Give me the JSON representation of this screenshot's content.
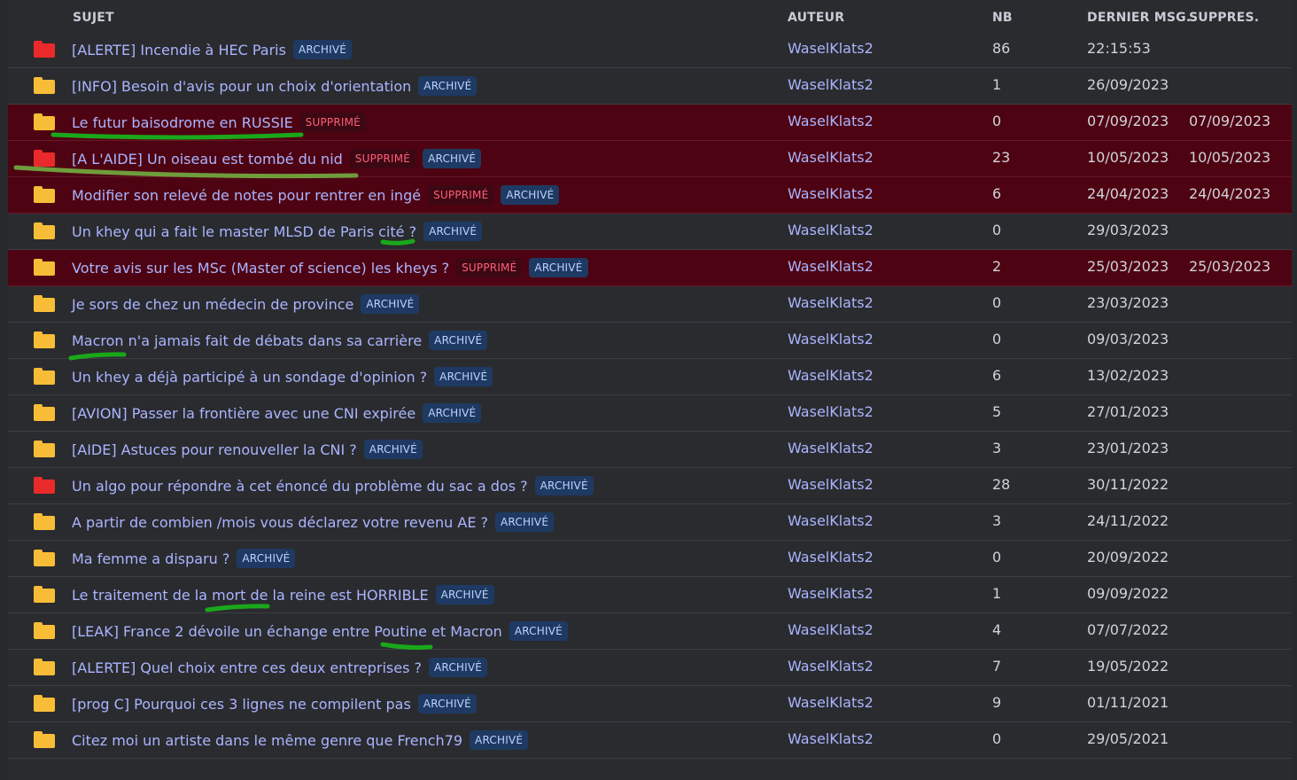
{
  "headers": {
    "subject": "SUJET",
    "author": "AUTEUR",
    "count": "NB",
    "last_message": "DERNIER MSG.",
    "deleted_at": "SUPPRES."
  },
  "colors": {
    "folder_normal": "#f8bd37",
    "folder_hot": "#ea2a2a",
    "deleted_row_bg": "#4e0312",
    "link": "#aab5ff",
    "highlight_marker": "#1aa81a"
  },
  "icons": {
    "topic": "folder-icon"
  },
  "topics": [
    {
      "title": "[ALERTE] Incendie à HEC Paris",
      "hot": true,
      "deleted_label": "",
      "archived_label": "ARCHIVÉ",
      "author": "WaselKlats2",
      "count": "86",
      "last": "22:15:53",
      "deleted_at": ""
    },
    {
      "title": "[INFO] Besoin d'avis pour un choix d'orientation",
      "hot": false,
      "deleted_label": "",
      "archived_label": "ARCHIVÉ",
      "author": "WaselKlats2",
      "count": "1",
      "last": "26/09/2023",
      "deleted_at": ""
    },
    {
      "title": "Le futur baisodrome en RUSSIE",
      "hot": false,
      "deleted_label": "SUPPRIMÉ",
      "archived_label": "",
      "author": "WaselKlats2",
      "count": "0",
      "last": "07/09/2023",
      "deleted_at": "07/09/2023"
    },
    {
      "title": "[A L'AIDE] Un oiseau est tombé du nid",
      "hot": true,
      "deleted_label": "SUPPRIMÉ",
      "archived_label": "ARCHIVÉ",
      "author": "WaselKlats2",
      "count": "23",
      "last": "10/05/2023",
      "deleted_at": "10/05/2023"
    },
    {
      "title": "Modifier son relevé de notes pour rentrer en ingé",
      "hot": false,
      "deleted_label": "SUPPRIMÉ",
      "archived_label": "ARCHIVÉ",
      "author": "WaselKlats2",
      "count": "6",
      "last": "24/04/2023",
      "deleted_at": "24/04/2023"
    },
    {
      "title": "Un khey qui a fait le master MLSD de Paris cité ?",
      "hot": false,
      "deleted_label": "",
      "archived_label": "ARCHIVÉ",
      "author": "WaselKlats2",
      "count": "0",
      "last": "29/03/2023",
      "deleted_at": ""
    },
    {
      "title": "Votre avis sur les MSc (Master of science) les kheys ?",
      "hot": false,
      "deleted_label": "SUPPRIMÉ",
      "archived_label": "ARCHIVÉ",
      "author": "WaselKlats2",
      "count": "2",
      "last": "25/03/2023",
      "deleted_at": "25/03/2023"
    },
    {
      "title": "Je sors de chez un médecin de province",
      "hot": false,
      "deleted_label": "",
      "archived_label": "ARCHIVÉ",
      "author": "WaselKlats2",
      "count": "0",
      "last": "23/03/2023",
      "deleted_at": ""
    },
    {
      "title": "Macron n'a jamais fait de débats dans sa carrière",
      "hot": false,
      "deleted_label": "",
      "archived_label": "ARCHIVÉ",
      "author": "WaselKlats2",
      "count": "0",
      "last": "09/03/2023",
      "deleted_at": ""
    },
    {
      "title": "Un khey a déjà participé à un sondage d'opinion ?",
      "hot": false,
      "deleted_label": "",
      "archived_label": "ARCHIVÉ",
      "author": "WaselKlats2",
      "count": "6",
      "last": "13/02/2023",
      "deleted_at": ""
    },
    {
      "title": "[AVION] Passer la frontière avec une CNI expirée",
      "hot": false,
      "deleted_label": "",
      "archived_label": "ARCHIVÉ",
      "author": "WaselKlats2",
      "count": "5",
      "last": "27/01/2023",
      "deleted_at": ""
    },
    {
      "title": "[AIDE] Astuces pour renouveller la CNI ?",
      "hot": false,
      "deleted_label": "",
      "archived_label": "ARCHIVÉ",
      "author": "WaselKlats2",
      "count": "3",
      "last": "23/01/2023",
      "deleted_at": ""
    },
    {
      "title": "Un algo pour répondre à cet énoncé du problème du sac a dos ?",
      "hot": true,
      "deleted_label": "",
      "archived_label": "ARCHIVÉ",
      "author": "WaselKlats2",
      "count": "28",
      "last": "30/11/2022",
      "deleted_at": ""
    },
    {
      "title": "A partir de combien /mois vous déclarez votre revenu AE ?",
      "hot": false,
      "deleted_label": "",
      "archived_label": "ARCHIVÉ",
      "author": "WaselKlats2",
      "count": "3",
      "last": "24/11/2022",
      "deleted_at": ""
    },
    {
      "title": "Ma femme a disparu ?",
      "hot": false,
      "deleted_label": "",
      "archived_label": "ARCHIVÉ",
      "author": "WaselKlats2",
      "count": "0",
      "last": "20/09/2022",
      "deleted_at": ""
    },
    {
      "title": "Le traitement de la mort de la reine est HORRIBLE",
      "hot": false,
      "deleted_label": "",
      "archived_label": "ARCHIVÉ",
      "author": "WaselKlats2",
      "count": "1",
      "last": "09/09/2022",
      "deleted_at": ""
    },
    {
      "title": "[LEAK] France 2 dévoile un échange entre Poutine et Macron",
      "hot": false,
      "deleted_label": "",
      "archived_label": "ARCHIVÉ",
      "author": "WaselKlats2",
      "count": "4",
      "last": "07/07/2022",
      "deleted_at": ""
    },
    {
      "title": "[ALERTE] Quel choix entre ces deux entreprises ?",
      "hot": false,
      "deleted_label": "",
      "archived_label": "ARCHIVÉ",
      "author": "WaselKlats2",
      "count": "7",
      "last": "19/05/2022",
      "deleted_at": ""
    },
    {
      "title": "[prog C] Pourquoi ces 3 lignes ne compilent pas",
      "hot": false,
      "deleted_label": "",
      "archived_label": "ARCHIVÉ",
      "author": "WaselKlats2",
      "count": "9",
      "last": "01/11/2021",
      "deleted_at": ""
    },
    {
      "title": "Citez moi un artiste dans le même genre que French79",
      "hot": false,
      "deleted_label": "",
      "archived_label": "ARCHIVÉ",
      "author": "WaselKlats2",
      "count": "0",
      "last": "29/05/2021",
      "deleted_at": ""
    }
  ]
}
